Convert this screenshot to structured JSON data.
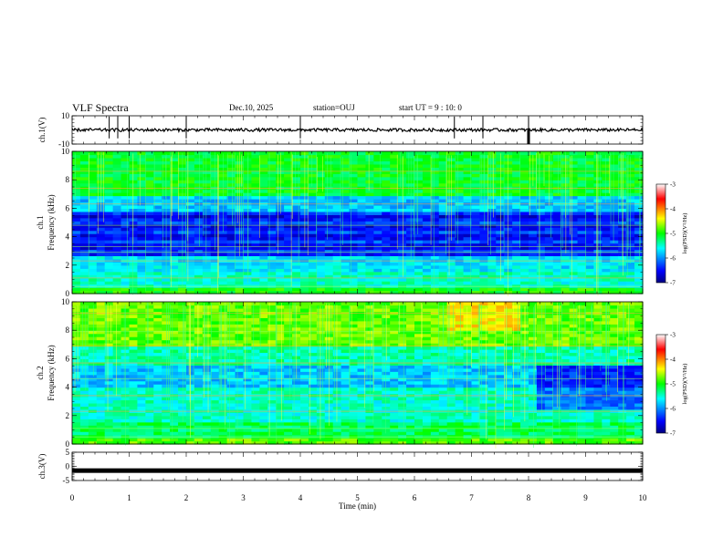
{
  "header": {
    "title": "VLF Spectra",
    "date": "Dec.10, 2025",
    "station": "station=OUJ",
    "start_ut": "start UT =  9 : 10: 0"
  },
  "chart_data": [
    {
      "type": "line",
      "panel": "ch1-waveform",
      "ylabel": "ch.1(V)",
      "ylim": [
        -10,
        10
      ],
      "yticks": [
        "10",
        "-10"
      ],
      "baseline": 0,
      "spike_minutes": [
        0.65,
        0.8,
        1.0,
        2.0,
        4.0,
        6.7,
        7.2,
        8.0
      ],
      "xlim": [
        0,
        10
      ]
    },
    {
      "type": "heatmap",
      "panel": "ch1-spectrogram",
      "ylabel_top": "ch.1",
      "ylabel": "Frequency (kHz)",
      "ylim": [
        0,
        10
      ],
      "yticks": [
        "0",
        "2",
        "4",
        "6",
        "8",
        "10"
      ],
      "xlim": [
        0,
        10
      ],
      "colorbar": {
        "label": "log(PSD)(V²/Hz)",
        "range": [
          -7,
          -3
        ],
        "ticks": [
          "-3",
          "-4",
          "-5",
          "-6",
          "-7"
        ]
      }
    },
    {
      "type": "heatmap",
      "panel": "ch2-spectrogram",
      "ylabel_top": "ch.2",
      "ylabel": "Frequency (kHz)",
      "ylim": [
        0,
        10
      ],
      "yticks": [
        "0",
        "2",
        "4",
        "6",
        "8",
        "10"
      ],
      "xlim": [
        0,
        10
      ],
      "colorbar": {
        "label": "log(PSD)(V²/Hz)",
        "range": [
          -7,
          -3
        ],
        "ticks": [
          "-3",
          "-4",
          "-5",
          "-6",
          "-7"
        ]
      }
    },
    {
      "type": "line",
      "panel": "ch3-waveform",
      "ylabel": "ch.3(V)",
      "ylim": [
        -5,
        5
      ],
      "yticks": [
        "5",
        "0",
        "-5"
      ],
      "baseline": -1.5,
      "xlim": [
        0,
        10
      ],
      "xlabel": "Time (min)",
      "xticks": [
        "0",
        "1",
        "2",
        "3",
        "4",
        "5",
        "6",
        "7",
        "8",
        "9",
        "10"
      ]
    }
  ]
}
